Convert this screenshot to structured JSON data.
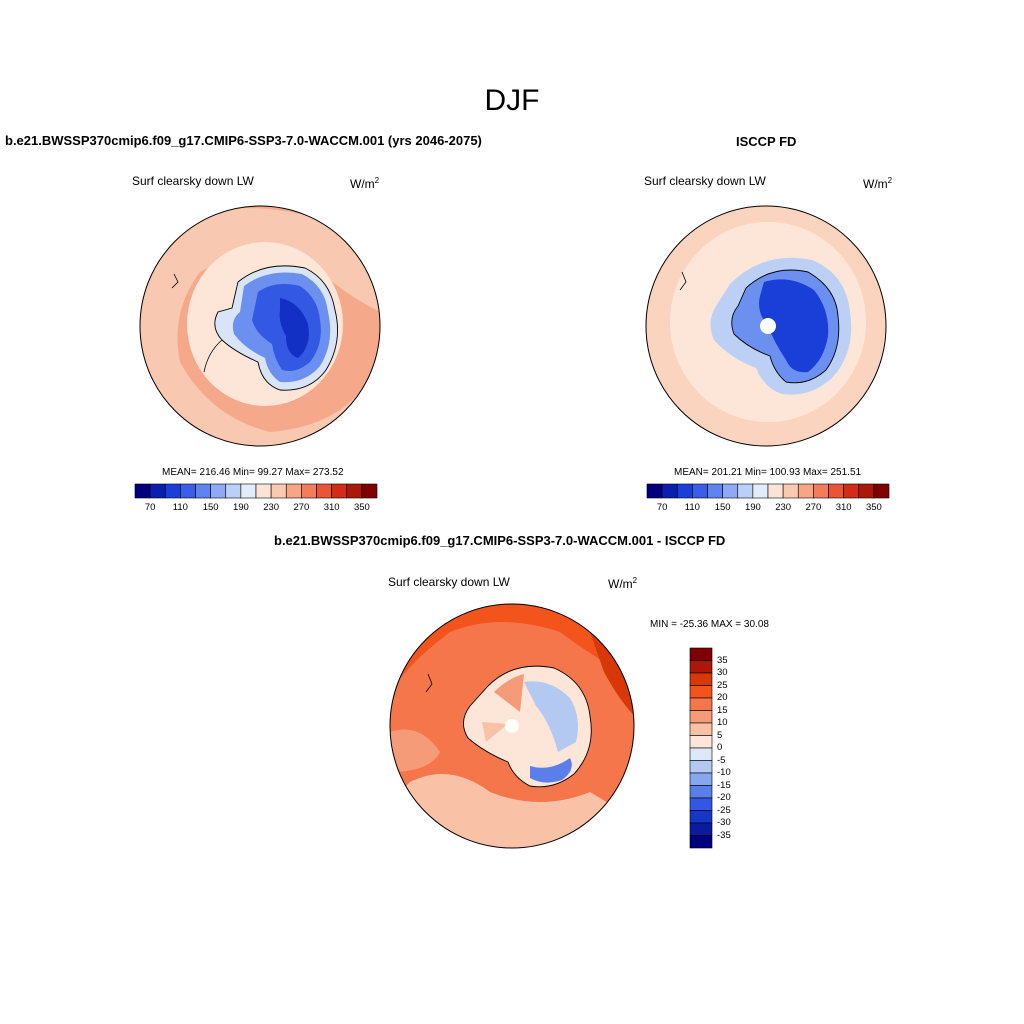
{
  "main_title": "DJF",
  "panels": [
    {
      "title": "b.e21.BWSSP370cmip6.f09_g17.CMIP6-SSP3-7.0-WACCM.001 (yrs 2046-2075)",
      "variable": "Surf clearsky down LW",
      "units_base": "W/m",
      "units_exp": "2",
      "stats": "MEAN= 216.46  Min=  99.27  Max= 273.52"
    },
    {
      "title": "ISCCP FD",
      "variable": "Surf clearsky down LW",
      "units_base": "W/m",
      "units_exp": "2",
      "stats": "MEAN= 201.21  Min= 100.93  Max= 251.51"
    },
    {
      "title": "b.e21.BWSSP370cmip6.f09_g17.CMIP6-SSP3-7.0-WACCM.001 - ISCCP FD",
      "variable": "Surf clearsky down LW",
      "units_base": "W/m",
      "units_exp": "2",
      "stats": "MIN = -25.36 MAX =  30.08"
    }
  ],
  "colorbar_abs": {
    "tick_labels": [
      "70",
      "110",
      "150",
      "190",
      "230",
      "270",
      "310",
      "350"
    ],
    "colors": [
      "#00007f",
      "#0a1fae",
      "#1a3ed8",
      "#3a5ee8",
      "#5f84f0",
      "#8eaaf2",
      "#bcd0f6",
      "#e2ecfa",
      "#fbe4d6",
      "#f9c9b0",
      "#f6a585",
      "#f17e5b",
      "#e85634",
      "#d12c14",
      "#ac1808",
      "#7f0000"
    ]
  },
  "colorbar_diff": {
    "tick_labels": [
      "35",
      "30",
      "25",
      "20",
      "15",
      "10",
      "5",
      "0",
      "-5",
      "-10",
      "-15",
      "-20",
      "-25",
      "-30",
      "-35"
    ],
    "colors": [
      "#7f0000",
      "#ac1808",
      "#d83808",
      "#f2541c",
      "#f4764a",
      "#f69b78",
      "#f9c2a6",
      "#fde6d8",
      "#dde8f8",
      "#b4c9f2",
      "#86a6ee",
      "#5a7fea",
      "#3058e2",
      "#1636c8",
      "#0a1b9e",
      "#00007f"
    ]
  }
}
